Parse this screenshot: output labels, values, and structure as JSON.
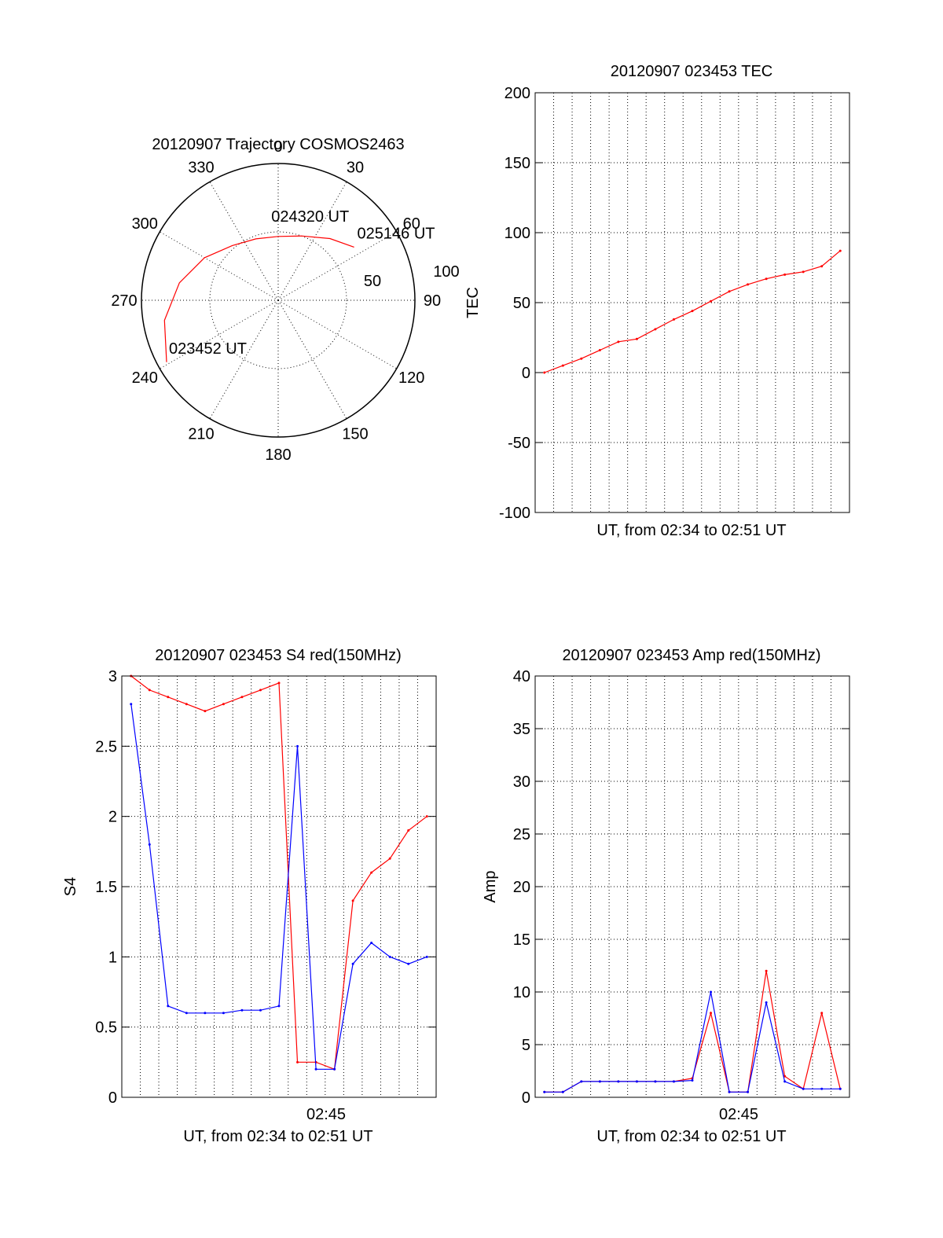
{
  "chart_data": [
    {
      "type": "polar",
      "title": "20120907 Trajectory COSMOS2463",
      "azimuth_labels": [
        "0",
        "30",
        "60",
        "90",
        "120",
        "150",
        "180",
        "210",
        "240",
        "270",
        "300",
        "330"
      ],
      "radial_labels": [
        "50",
        "100"
      ],
      "grid": true,
      "series": [
        {
          "color": "#ff0000",
          "points": [
            {
              "az": 241,
              "el": 6
            },
            {
              "az": 260,
              "el": 14
            },
            {
              "az": 280,
              "el": 24
            },
            {
              "az": 300,
              "el": 34
            },
            {
              "az": 320,
              "el": 43
            },
            {
              "az": 340,
              "el": 47
            },
            {
              "az": 0,
              "el": 48
            },
            {
              "az": 20,
              "el": 45
            },
            {
              "az": 40,
              "el": 37
            },
            {
              "az": 55,
              "el": 29
            }
          ]
        }
      ],
      "annotations": [
        {
          "text": "023452 UT",
          "az": 244,
          "el": 10
        },
        {
          "text": "024320 UT",
          "az": 355,
          "el": 38
        },
        {
          "text": "025146 UT",
          "az": 52,
          "el": 24
        }
      ]
    },
    {
      "type": "line",
      "title": "20120907 023453 TEC",
      "xlabel": "UT, from 02:34 to 02:51 UT",
      "ylabel": "TEC",
      "ylim": [
        -100,
        200
      ],
      "yticks": [
        "200",
        "150",
        "100",
        "50",
        "0",
        "-50",
        "-100"
      ],
      "grid": true,
      "series": [
        {
          "color": "#ff0000",
          "x": [
            0.5,
            1.5,
            2.5,
            3.5,
            4.5,
            5.5,
            6.5,
            7.5,
            8.5,
            9.5,
            10.5,
            11.5,
            12.5,
            13.5,
            14.5,
            15.5,
            16.5
          ],
          "y": [
            0,
            5,
            10,
            16,
            22,
            24,
            31,
            38,
            44,
            51,
            58,
            63,
            67,
            70,
            72,
            76,
            87
          ]
        }
      ]
    },
    {
      "type": "line",
      "title": "20120907 023453 S4 red(150MHz)",
      "xlabel": "UT, from 02:34 to 02:51 UT",
      "ylabel": "S4",
      "ylim": [
        0,
        3
      ],
      "yticks": [
        "3",
        "2.5",
        "2",
        "1.5",
        "1",
        "0.5",
        "0"
      ],
      "xtick_labels": [
        "02:45"
      ],
      "grid": true,
      "series": [
        {
          "color": "#ff0000",
          "x": [
            0.5,
            1.5,
            2.5,
            3.5,
            4.5,
            5.5,
            6.5,
            7.5,
            8.5,
            9.5,
            10.5,
            11.5,
            12.5,
            13.5,
            14.5,
            15.5,
            16.5
          ],
          "y": [
            3.0,
            2.9,
            2.85,
            2.8,
            2.75,
            2.8,
            2.85,
            2.9,
            2.95,
            0.25,
            0.25,
            0.2,
            1.4,
            1.6,
            1.7,
            1.9,
            2.0
          ]
        },
        {
          "color": "#0000ff",
          "x": [
            0.5,
            1.5,
            2.5,
            3.5,
            4.5,
            5.5,
            6.5,
            7.5,
            8.5,
            9.5,
            10.5,
            11.5,
            12.5,
            13.5,
            14.5,
            15.5,
            16.5
          ],
          "y": [
            2.8,
            1.8,
            0.65,
            0.6,
            0.6,
            0.6,
            0.62,
            0.62,
            0.65,
            2.5,
            0.2,
            0.2,
            0.95,
            1.1,
            1.0,
            0.95,
            1.0
          ]
        }
      ]
    },
    {
      "type": "line",
      "title": "20120907 023453 Amp red(150MHz)",
      "xlabel": "UT, from 02:34 to 02:51 UT",
      "ylabel": "Amp",
      "ylim": [
        0,
        40
      ],
      "yticks": [
        "40",
        "35",
        "30",
        "25",
        "20",
        "15",
        "10",
        "5",
        "0"
      ],
      "xtick_labels": [
        "02:45"
      ],
      "grid": true,
      "series": [
        {
          "color": "#ff0000",
          "x": [
            0.5,
            1.5,
            2.5,
            3.5,
            4.5,
            5.5,
            6.5,
            7.5,
            8.5,
            9.5,
            10.5,
            11.5,
            12.5,
            13.5,
            14.5,
            15.5,
            16.5
          ],
          "y": [
            0.5,
            0.5,
            1.5,
            1.5,
            1.5,
            1.5,
            1.5,
            1.5,
            1.8,
            8,
            0.5,
            0.5,
            12,
            2,
            0.8,
            8,
            0.8
          ]
        },
        {
          "color": "#0000ff",
          "x": [
            0.5,
            1.5,
            2.5,
            3.5,
            4.5,
            5.5,
            6.5,
            7.5,
            8.5,
            9.5,
            10.5,
            11.5,
            12.5,
            13.5,
            14.5,
            15.5,
            16.5
          ],
          "y": [
            0.5,
            0.5,
            1.5,
            1.5,
            1.5,
            1.5,
            1.5,
            1.5,
            1.6,
            10,
            0.5,
            0.5,
            9,
            1.5,
            0.8,
            0.8,
            0.8
          ]
        }
      ]
    }
  ]
}
